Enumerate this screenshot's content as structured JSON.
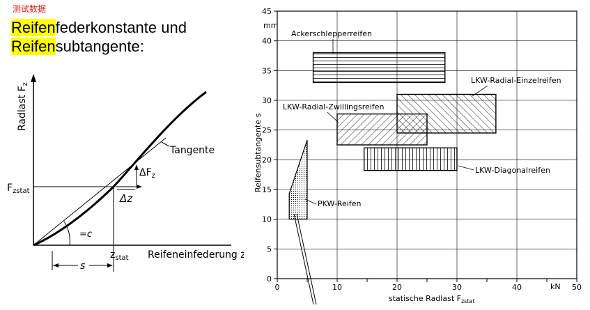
{
  "watermark": "测试数据",
  "heading": {
    "line1_highlight": "Reifen",
    "line1_rest": "federkonstante und",
    "line2_highlight": "Reifen",
    "line2_rest": "subtangente:"
  },
  "left_diagram": {
    "y_axis_label": "Radlast F",
    "y_axis_sub": "z",
    "x_axis_label": "Reifeneinfederung z",
    "fzstat": "F",
    "fzstat_sub": "zstat",
    "zstat": "z",
    "zstat_sub": "stat",
    "tangente": "Tangente",
    "delta_f": "ΔF",
    "delta_f_sub": "z",
    "delta_z": "Δz",
    "angle": "=c",
    "s": "s"
  },
  "colors": {
    "highlight": "#ffff00",
    "watermark": "#e0201c"
  },
  "chart_data": {
    "type": "area",
    "ylabel": "Reifensubtangente s",
    "yunit": "mm",
    "xlabel": "statische Radlast F",
    "xlabel_sub": "zstat",
    "xunit": "kN",
    "xlim": [
      0,
      50
    ],
    "ylim": [
      0,
      45
    ],
    "xticks": [
      "0",
      "10",
      "20",
      "30",
      "40",
      "50"
    ],
    "yticks": [
      "0",
      "5",
      "10",
      "15",
      "20",
      "25",
      "30",
      "35",
      "40",
      "45"
    ],
    "grid": true,
    "series": [
      {
        "name": "Ackerschlepperreifen",
        "hatch": "horizontal",
        "x": [
          6,
          28
        ],
        "y": [
          33,
          38
        ]
      },
      {
        "name": "LKW-Radial-Einzelreifen",
        "hatch": "diagonal-back",
        "x": [
          20,
          36.5
        ],
        "y": [
          24.5,
          31
        ]
      },
      {
        "name": "LKW-Radial-Zwillingsreifen",
        "hatch": "diagonal-forward",
        "x": [
          10,
          25
        ],
        "y": [
          22.5,
          27.7
        ]
      },
      {
        "name": "LKW-Diagonalreifen",
        "hatch": "vertical",
        "x": [
          14.5,
          30
        ],
        "y": [
          18.2,
          22
        ]
      },
      {
        "name": "PKW-Reifen",
        "hatch": "dotted",
        "polygon": [
          [
            2,
            10
          ],
          [
            5,
            10
          ],
          [
            5,
            23.3
          ],
          [
            2,
            14.3
          ]
        ]
      }
    ]
  }
}
